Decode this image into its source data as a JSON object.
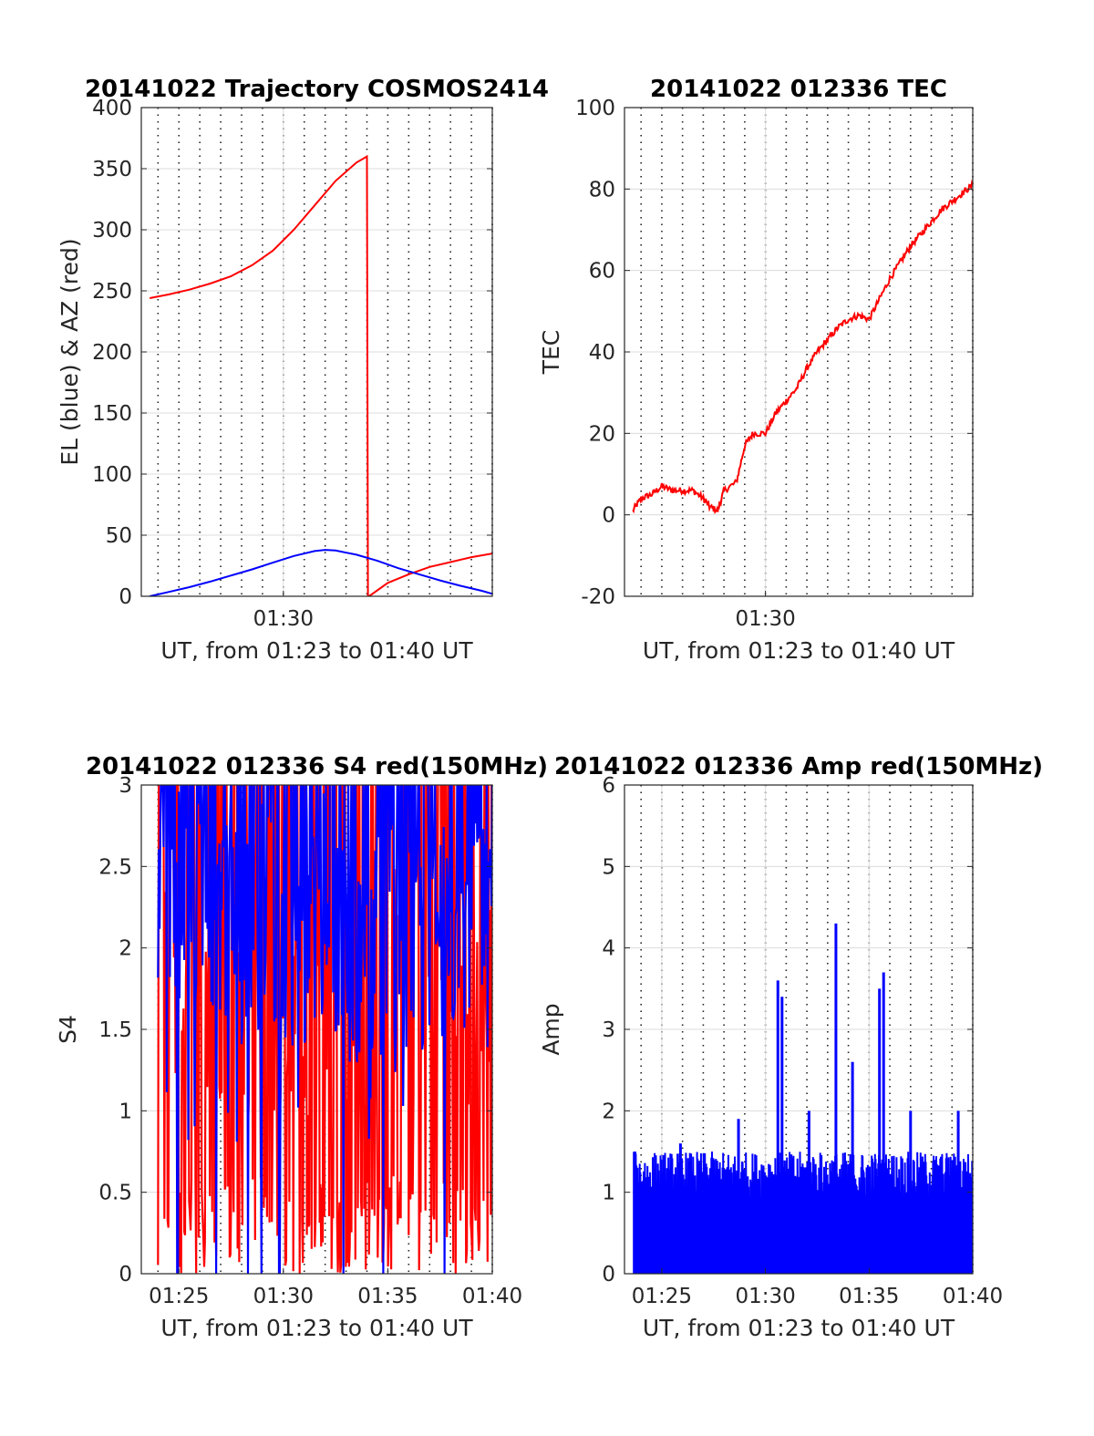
{
  "chart_data": [
    {
      "type": "line",
      "title": "20141022 Trajectory COSMOS2414",
      "xlabel": "UT, from 01:23 to 01:40 UT",
      "ylabel": "EL (blue) & AZ (red)",
      "xlim": [
        23.2,
        40.0
      ],
      "ylim": [
        0,
        400
      ],
      "xticks": [
        {
          "x": 30,
          "label": "01:30"
        }
      ],
      "yticks": [
        0,
        50,
        100,
        150,
        200,
        250,
        300,
        350,
        400
      ],
      "grid": true,
      "minor_x_grid_dotted": true,
      "series": [
        {
          "color": "#ff0000",
          "x": [
            23.6,
            24.5,
            25.5,
            26.5,
            27.5,
            28.5,
            29.5,
            30.5,
            31.5,
            32.5,
            33.5,
            34.0,
            34.05,
            34.1,
            35,
            36,
            37,
            38,
            39,
            40
          ],
          "y": [
            244,
            247,
            251,
            256,
            262,
            271,
            283,
            300,
            320,
            340,
            355,
            360,
            0,
            0,
            11,
            18,
            24,
            28,
            32,
            35
          ]
        },
        {
          "color": "#0000ff",
          "x": [
            23.6,
            24.5,
            25.5,
            26.5,
            27.5,
            28.5,
            29.5,
            30.5,
            31.5,
            32.0,
            32.5,
            33.5,
            34.5,
            35.5,
            36.5,
            37.5,
            38.5,
            39.5,
            40
          ],
          "y": [
            0,
            3.5,
            7.5,
            12,
            17,
            22,
            27.5,
            33,
            37,
            38,
            37.5,
            34,
            29,
            23,
            18,
            13,
            8.5,
            4.5,
            2
          ]
        }
      ]
    },
    {
      "type": "line",
      "title": "20141022 012336 TEC",
      "xlabel": "UT, from 01:23 to 01:40 UT",
      "ylabel": "TEC",
      "xlim": [
        23.2,
        40.0
      ],
      "ylim": [
        -20,
        100
      ],
      "xticks": [
        {
          "x": 30,
          "label": "01:30"
        }
      ],
      "yticks": [
        -20,
        0,
        20,
        40,
        60,
        80,
        100
      ],
      "grid": true,
      "minor_x_grid_dotted": true,
      "series": [
        {
          "color": "#ff0000",
          "x": [
            23.6,
            24.0,
            24.5,
            25.0,
            25.5,
            26.0,
            26.5,
            27.0,
            27.3,
            27.7,
            28.0,
            28.6,
            29.0,
            29.4,
            30.0,
            30.5,
            31.0,
            31.5,
            32.0,
            32.5,
            33.0,
            33.5,
            34.0,
            34.5,
            35.0,
            35.5,
            36.0,
            36.5,
            37.0,
            37.5,
            38.0,
            38.5,
            39.0,
            39.5,
            40.0
          ],
          "y": [
            1,
            4,
            5,
            7,
            6,
            6,
            6,
            4,
            2,
            1,
            6,
            8,
            17,
            20,
            20,
            25,
            28,
            31,
            36,
            40,
            43,
            46,
            48,
            49,
            48,
            53,
            58,
            62,
            66,
            69,
            72,
            75,
            77,
            79,
            81
          ]
        }
      ]
    },
    {
      "type": "line",
      "title": "20141022 012336 S4 red(150MHz)",
      "xlabel": "UT, from 01:23 to 01:40 UT",
      "ylabel": "S4",
      "xlim": [
        23.2,
        40.0
      ],
      "ylim": [
        0,
        3
      ],
      "xticks": [
        {
          "x": 25,
          "label": "01:25"
        },
        {
          "x": 30,
          "label": "01:30"
        },
        {
          "x": 35,
          "label": "01:35"
        },
        {
          "x": 40,
          "label": "01:40"
        }
      ],
      "yticks": [
        0,
        0.5,
        1,
        1.5,
        2,
        2.5,
        3
      ],
      "grid": true,
      "minor_x_grid_dotted": true,
      "series": [
        {
          "color": "#ff0000",
          "note_values": "dense noisy signal between 0 and 3",
          "x": [
            24.0,
            25.0,
            26.0,
            27.0,
            28.0,
            29.0,
            30.0,
            31.0,
            32.0,
            33.0,
            34.0,
            35.0,
            36.0,
            37.0,
            38.0,
            39.0,
            40.0
          ],
          "y": [
            2.0,
            1.8,
            1.9,
            1.7,
            1.6,
            1.8,
            1.5,
            1.7,
            1.9,
            1.6,
            1.5,
            1.7,
            1.8,
            1.6,
            1.7,
            1.8,
            1.6
          ]
        },
        {
          "color": "#0000ff",
          "x": [
            24.0,
            25.0,
            26.0,
            27.0,
            28.0,
            29.0,
            30.0,
            31.0,
            32.0,
            33.0,
            34.0,
            35.0,
            36.0,
            37.0,
            38.0,
            39.0,
            40.0
          ],
          "y": [
            2.4,
            2.3,
            2.2,
            2.3,
            2.1,
            2.2,
            2.0,
            2.1,
            2.3,
            2.0,
            1.9,
            2.1,
            2.2,
            2.0,
            2.1,
            2.2,
            2.0
          ]
        }
      ]
    },
    {
      "type": "line",
      "title": "20141022 012336 Amp red(150MHz)",
      "xlabel": "UT, from 01:23 to 01:40 UT",
      "ylabel": "Amp",
      "xlim": [
        23.2,
        40.0
      ],
      "ylim": [
        0,
        6
      ],
      "xticks": [
        {
          "x": 25,
          "label": "01:25"
        },
        {
          "x": 30,
          "label": "01:30"
        },
        {
          "x": 35,
          "label": "01:35"
        },
        {
          "x": 40,
          "label": "01:40"
        }
      ],
      "yticks": [
        0,
        1,
        2,
        3,
        4,
        5,
        6
      ],
      "grid": true,
      "minor_x_grid_dotted": true,
      "series": [
        {
          "color": "#0000ff",
          "peaks": [
            {
              "x": 23.7,
              "y": 1.5
            },
            {
              "x": 25.9,
              "y": 1.6
            },
            {
              "x": 28.7,
              "y": 1.9
            },
            {
              "x": 30.6,
              "y": 3.6
            },
            {
              "x": 30.8,
              "y": 3.4
            },
            {
              "x": 32.1,
              "y": 2.0
            },
            {
              "x": 33.4,
              "y": 4.3
            },
            {
              "x": 34.2,
              "y": 2.6
            },
            {
              "x": 35.5,
              "y": 3.5
            },
            {
              "x": 35.7,
              "y": 3.7
            },
            {
              "x": 37.0,
              "y": 2.0
            },
            {
              "x": 39.3,
              "y": 2.0
            }
          ],
          "baseline_range": [
            0.9,
            1.5
          ]
        }
      ]
    }
  ]
}
